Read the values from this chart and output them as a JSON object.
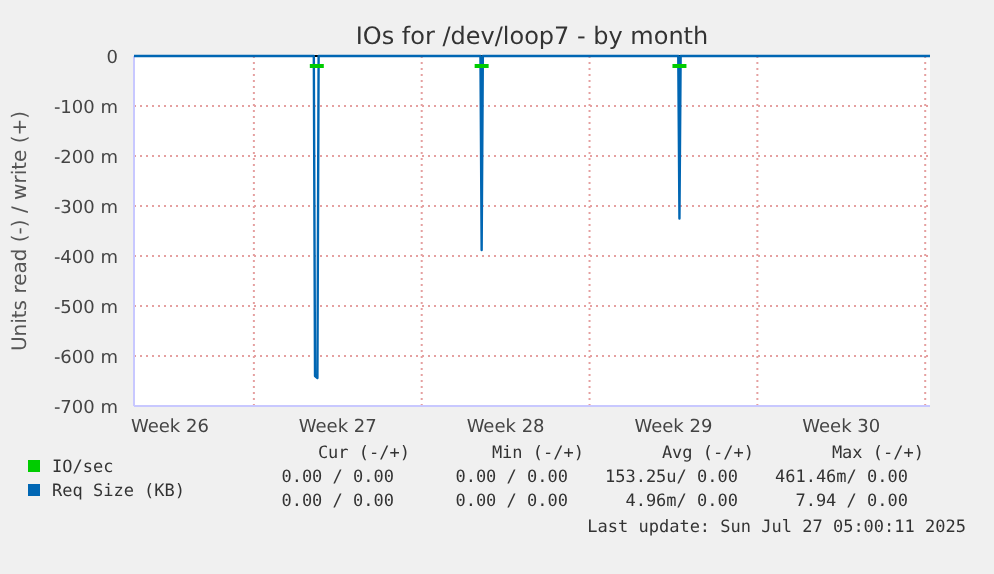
{
  "chart_data": {
    "type": "line",
    "title": "IOs for /dev/loop7 - by month",
    "ylabel": "Units read (-) / write (+)",
    "xlim": [
      "2025-06-25",
      "2025-07-28T04:48"
    ],
    "xticks": [
      {
        "value": "2025-06-26T12:00",
        "label": "Week 26"
      },
      {
        "value": "2025-06-30",
        "label": null
      },
      {
        "value": "2025-07-03T12:00",
        "label": "Week 27"
      },
      {
        "value": "2025-07-07",
        "label": null
      },
      {
        "value": "2025-07-10T12:00",
        "label": "Week 28"
      },
      {
        "value": "2025-07-14",
        "label": null
      },
      {
        "value": "2025-07-17T12:00",
        "label": "Week 29"
      },
      {
        "value": "2025-07-21",
        "label": null
      },
      {
        "value": "2025-07-24T12:00",
        "label": "Week 30"
      },
      {
        "value": "2025-07-28",
        "label": null
      }
    ],
    "ylim": [
      -700,
      0
    ],
    "yticks": [
      {
        "value": 0,
        "label": "0"
      },
      {
        "value": -100,
        "label": "-100 m"
      },
      {
        "value": -200,
        "label": "-200 m"
      },
      {
        "value": -300,
        "label": "-300 m"
      },
      {
        "value": -400,
        "label": "-400 m"
      },
      {
        "value": -500,
        "label": "-500 m"
      },
      {
        "value": -600,
        "label": "-600 m"
      },
      {
        "value": -700,
        "label": "-700 m"
      }
    ],
    "grid": true,
    "legend": "bottom left",
    "series": [
      {
        "name": "IO/sec",
        "color": "#00cc00",
        "x": [
          "2025-07-02T08:00",
          "2025-07-02T22:00",
          "2025-07-06",
          "2025-07-09T05:00",
          "2025-07-09T19:00",
          "2025-07-13",
          "2025-07-17T11:00",
          "2025-07-18T01:00"
        ],
        "values": [
          -20,
          -20,
          null,
          -20,
          -20,
          null,
          -20,
          -20
        ]
      },
      {
        "name": "Req Size (KB)",
        "color": "#0066b3",
        "x": [
          "2025-06-25",
          "2025-07-02T12:00",
          "2025-07-02T13:12",
          "2025-07-02T15:36",
          "2025-07-02T16:48",
          "2025-07-09T10:48",
          "2025-07-09T12:00",
          "2025-07-09T13:12",
          "2025-07-17T16:48",
          "2025-07-17T18:00",
          "2025-07-17T19:12",
          "2025-07-28T04:48"
        ],
        "values": [
          0,
          0,
          -640,
          -644,
          0,
          0,
          -388,
          0,
          0,
          -325,
          0,
          0
        ]
      }
    ],
    "annotations": [
      "Cur (-/+)",
      "Min (-/+)",
      "Avg (-/+)",
      "Max (-/+)",
      "0.00 / 0.00",
      "0.00 / 0.00",
      "153.25u/ 0.00",
      "461.46m/ 0.00",
      "0.00 / 0.00",
      "0.00 / 0.00",
      "4.96m/ 0.00",
      "7.94 / 0.00",
      "Last update: Sun Jul 27 05:00:11 2025"
    ]
  }
}
